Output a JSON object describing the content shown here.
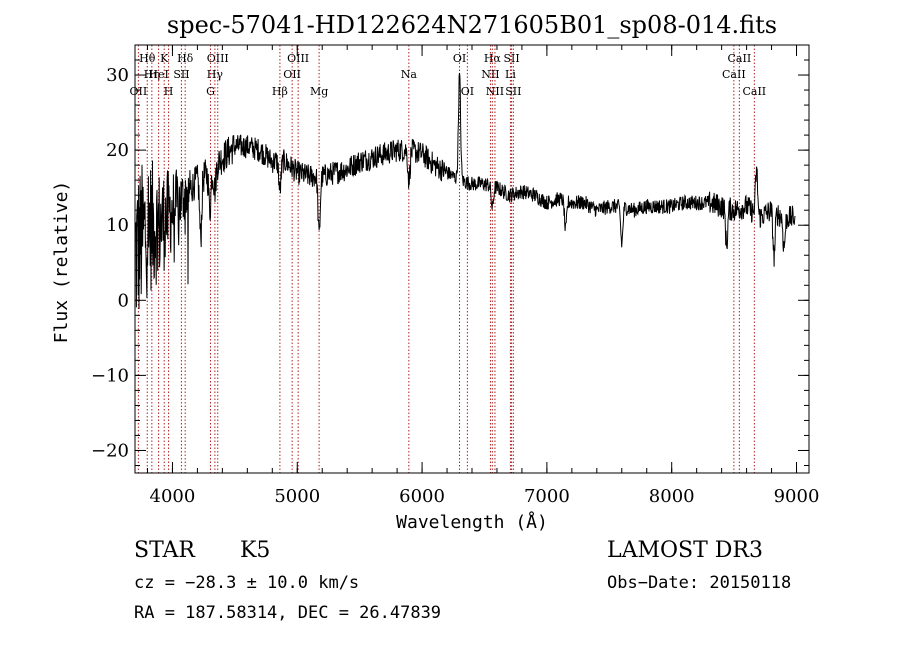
{
  "chart_data": {
    "type": "line",
    "title": "spec-57041-HD122624N271605B01_sp08-014.fits",
    "xlabel": "Wavelength (Å)",
    "ylabel": "Flux (relative)",
    "xlim": [
      3700,
      9100
    ],
    "ylim": [
      -23,
      34
    ],
    "x_ticks": [
      4000,
      5000,
      6000,
      7000,
      8000,
      9000
    ],
    "x_tick_labels": [
      "4000",
      "5000",
      "6000",
      "7000",
      "8000",
      "9000"
    ],
    "y_ticks": [
      -20,
      -10,
      0,
      10,
      20,
      30
    ],
    "y_tick_labels": [
      "−20",
      "−10",
      "0",
      "10",
      "20",
      "30"
    ],
    "x_minor_step": 200,
    "y_minor_step": 2,
    "line_color": "#000000",
    "marker_color": "#b22222",
    "continuum": {
      "x": [
        3700,
        3800,
        3900,
        4000,
        4100,
        4200,
        4300,
        4400,
        4500,
        4600,
        4700,
        4800,
        4900,
        5000,
        5100,
        5200,
        5300,
        5400,
        5500,
        5600,
        5700,
        5800,
        5900,
        6000,
        6100,
        6200,
        6300,
        6400,
        6500,
        6600,
        6700,
        6800,
        6900,
        7000,
        7100,
        7200,
        7300,
        7400,
        7500,
        7600,
        7700,
        7800,
        7900,
        8000,
        8100,
        8200,
        8300,
        8400,
        8500,
        8600,
        8700,
        8800,
        8900,
        9000
      ],
      "y": [
        6,
        10,
        10,
        12,
        14,
        16,
        17,
        19,
        20.5,
        20.5,
        20,
        18.5,
        18.5,
        17,
        16.5,
        16.5,
        17,
        17.5,
        18.5,
        19,
        19.5,
        20,
        20,
        19.5,
        18,
        17,
        16,
        15.5,
        15.5,
        15,
        14,
        14.5,
        14,
        13,
        13.5,
        13,
        13,
        12,
        12.5,
        12.5,
        12,
        12.5,
        12.5,
        12.5,
        13,
        13,
        13,
        12.5,
        12,
        12.5,
        11,
        12,
        11,
        11
      ]
    },
    "features": [
      {
        "x": 4226,
        "depth": -8
      },
      {
        "x": 4300,
        "depth": -5
      },
      {
        "x": 4340,
        "depth": -3
      },
      {
        "x": 4861,
        "depth": -4
      },
      {
        "x": 5175,
        "depth": -8
      },
      {
        "x": 5895,
        "depth": -4
      },
      {
        "x": 6300,
        "depth": 14
      },
      {
        "x": 6563,
        "depth": -3
      },
      {
        "x": 7150,
        "depth": -4
      },
      {
        "x": 7600,
        "depth": -5
      },
      {
        "x": 8440,
        "depth": -5
      },
      {
        "x": 8680,
        "depth": 6
      },
      {
        "x": 8820,
        "depth": -6
      },
      {
        "x": 8900,
        "depth": -4
      }
    ],
    "line_markers": [
      {
        "label": "Hθ",
        "x": 3798,
        "row": 0
      },
      {
        "label": "OII",
        "x": 3727,
        "row": 2
      },
      {
        "label": "Hη",
        "x": 3835,
        "row": 1
      },
      {
        "label": "K",
        "x": 3934,
        "row": 0
      },
      {
        "label": "HeI",
        "x": 3889,
        "row": 1
      },
      {
        "label": "H",
        "x": 3969,
        "row": 2
      },
      {
        "label": "Hδ",
        "x": 4102,
        "row": 0
      },
      {
        "label": "SII",
        "x": 4072,
        "row": 1
      },
      {
        "label": "OIII",
        "x": 4363,
        "row": 0
      },
      {
        "label": "Hγ",
        "x": 4340,
        "row": 1
      },
      {
        "label": "G",
        "x": 4305,
        "row": 2
      },
      {
        "label": "OIII",
        "x": 5007,
        "row": 0
      },
      {
        "label": "OII",
        "x": 4959,
        "row": 1
      },
      {
        "label": "Hβ",
        "x": 4861,
        "row": 2
      },
      {
        "label": "Mg",
        "x": 5175,
        "row": 2
      },
      {
        "label": "Na",
        "x": 5894,
        "row": 1
      },
      {
        "label": "OI",
        "x": 6300,
        "row": 0
      },
      {
        "label": "OI",
        "x": 6363,
        "row": 2
      },
      {
        "label": "Hα",
        "x": 6563,
        "row": 0
      },
      {
        "label": "NII",
        "x": 6548,
        "row": 1
      },
      {
        "label": "NII",
        "x": 6584,
        "row": 2
      },
      {
        "label": "SII",
        "x": 6717,
        "row": 0
      },
      {
        "label": "Li",
        "x": 6708,
        "row": 1
      },
      {
        "label": "SII",
        "x": 6731,
        "row": 2
      },
      {
        "label": "CaII",
        "x": 8542,
        "row": 0
      },
      {
        "label": "CaII",
        "x": 8498,
        "row": 1
      },
      {
        "label": "CaII",
        "x": 8662,
        "row": 2
      }
    ]
  },
  "info": {
    "class": "STAR",
    "subclass": "K5",
    "cz": "cz = −28.3 ± 10.0 km/s",
    "survey": "LAMOST DR3",
    "obs_date": "Obs−Date: 20150118",
    "radec": "RA = 187.58314, DEC =  26.47839"
  }
}
